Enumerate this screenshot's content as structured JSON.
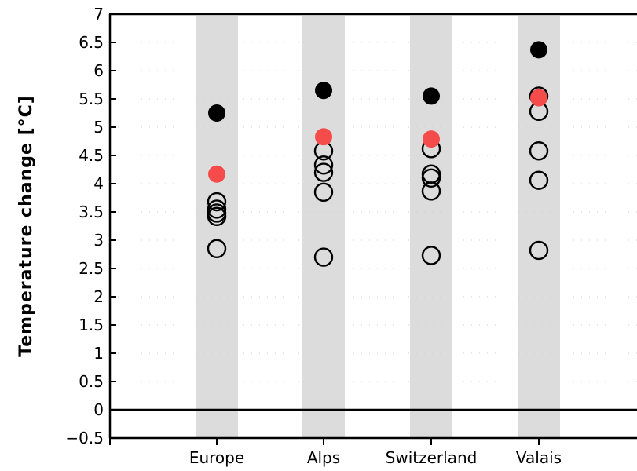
{
  "chart_data": {
    "type": "scatter",
    "title": "",
    "xlabel": "",
    "ylabel": "Temperature change [°C]",
    "ylim": [
      -0.5,
      7
    ],
    "yticks": [
      "−0.5",
      "0",
      "0.5",
      "1",
      "1.5",
      "2",
      "2.5",
      "3",
      "3.5",
      "4",
      "4.5",
      "5",
      "5.5",
      "6",
      "6.5",
      "7"
    ],
    "categories": [
      "Europe",
      "Alps",
      "Switzerland",
      "Valais"
    ],
    "grid": "dotted horizontal",
    "zero_line": true,
    "series": [
      {
        "color": "#000000",
        "marker": "filled-circle",
        "values": [
          5.25,
          5.65,
          5.55,
          6.37
        ]
      },
      {
        "color": "#f54b4b",
        "marker": "filled-circle",
        "values": [
          4.17,
          4.83,
          4.79,
          5.52
        ]
      },
      {
        "color": "#000000",
        "marker": "open-circle",
        "points": [
          [
            3.68,
            3.55,
            3.48,
            3.42,
            2.85
          ],
          [
            4.58,
            4.33,
            4.2,
            3.85,
            2.7
          ],
          [
            4.62,
            4.17,
            4.1,
            3.87,
            2.73
          ],
          [
            5.55,
            5.28,
            4.58,
            4.06,
            2.82
          ]
        ]
      }
    ]
  }
}
